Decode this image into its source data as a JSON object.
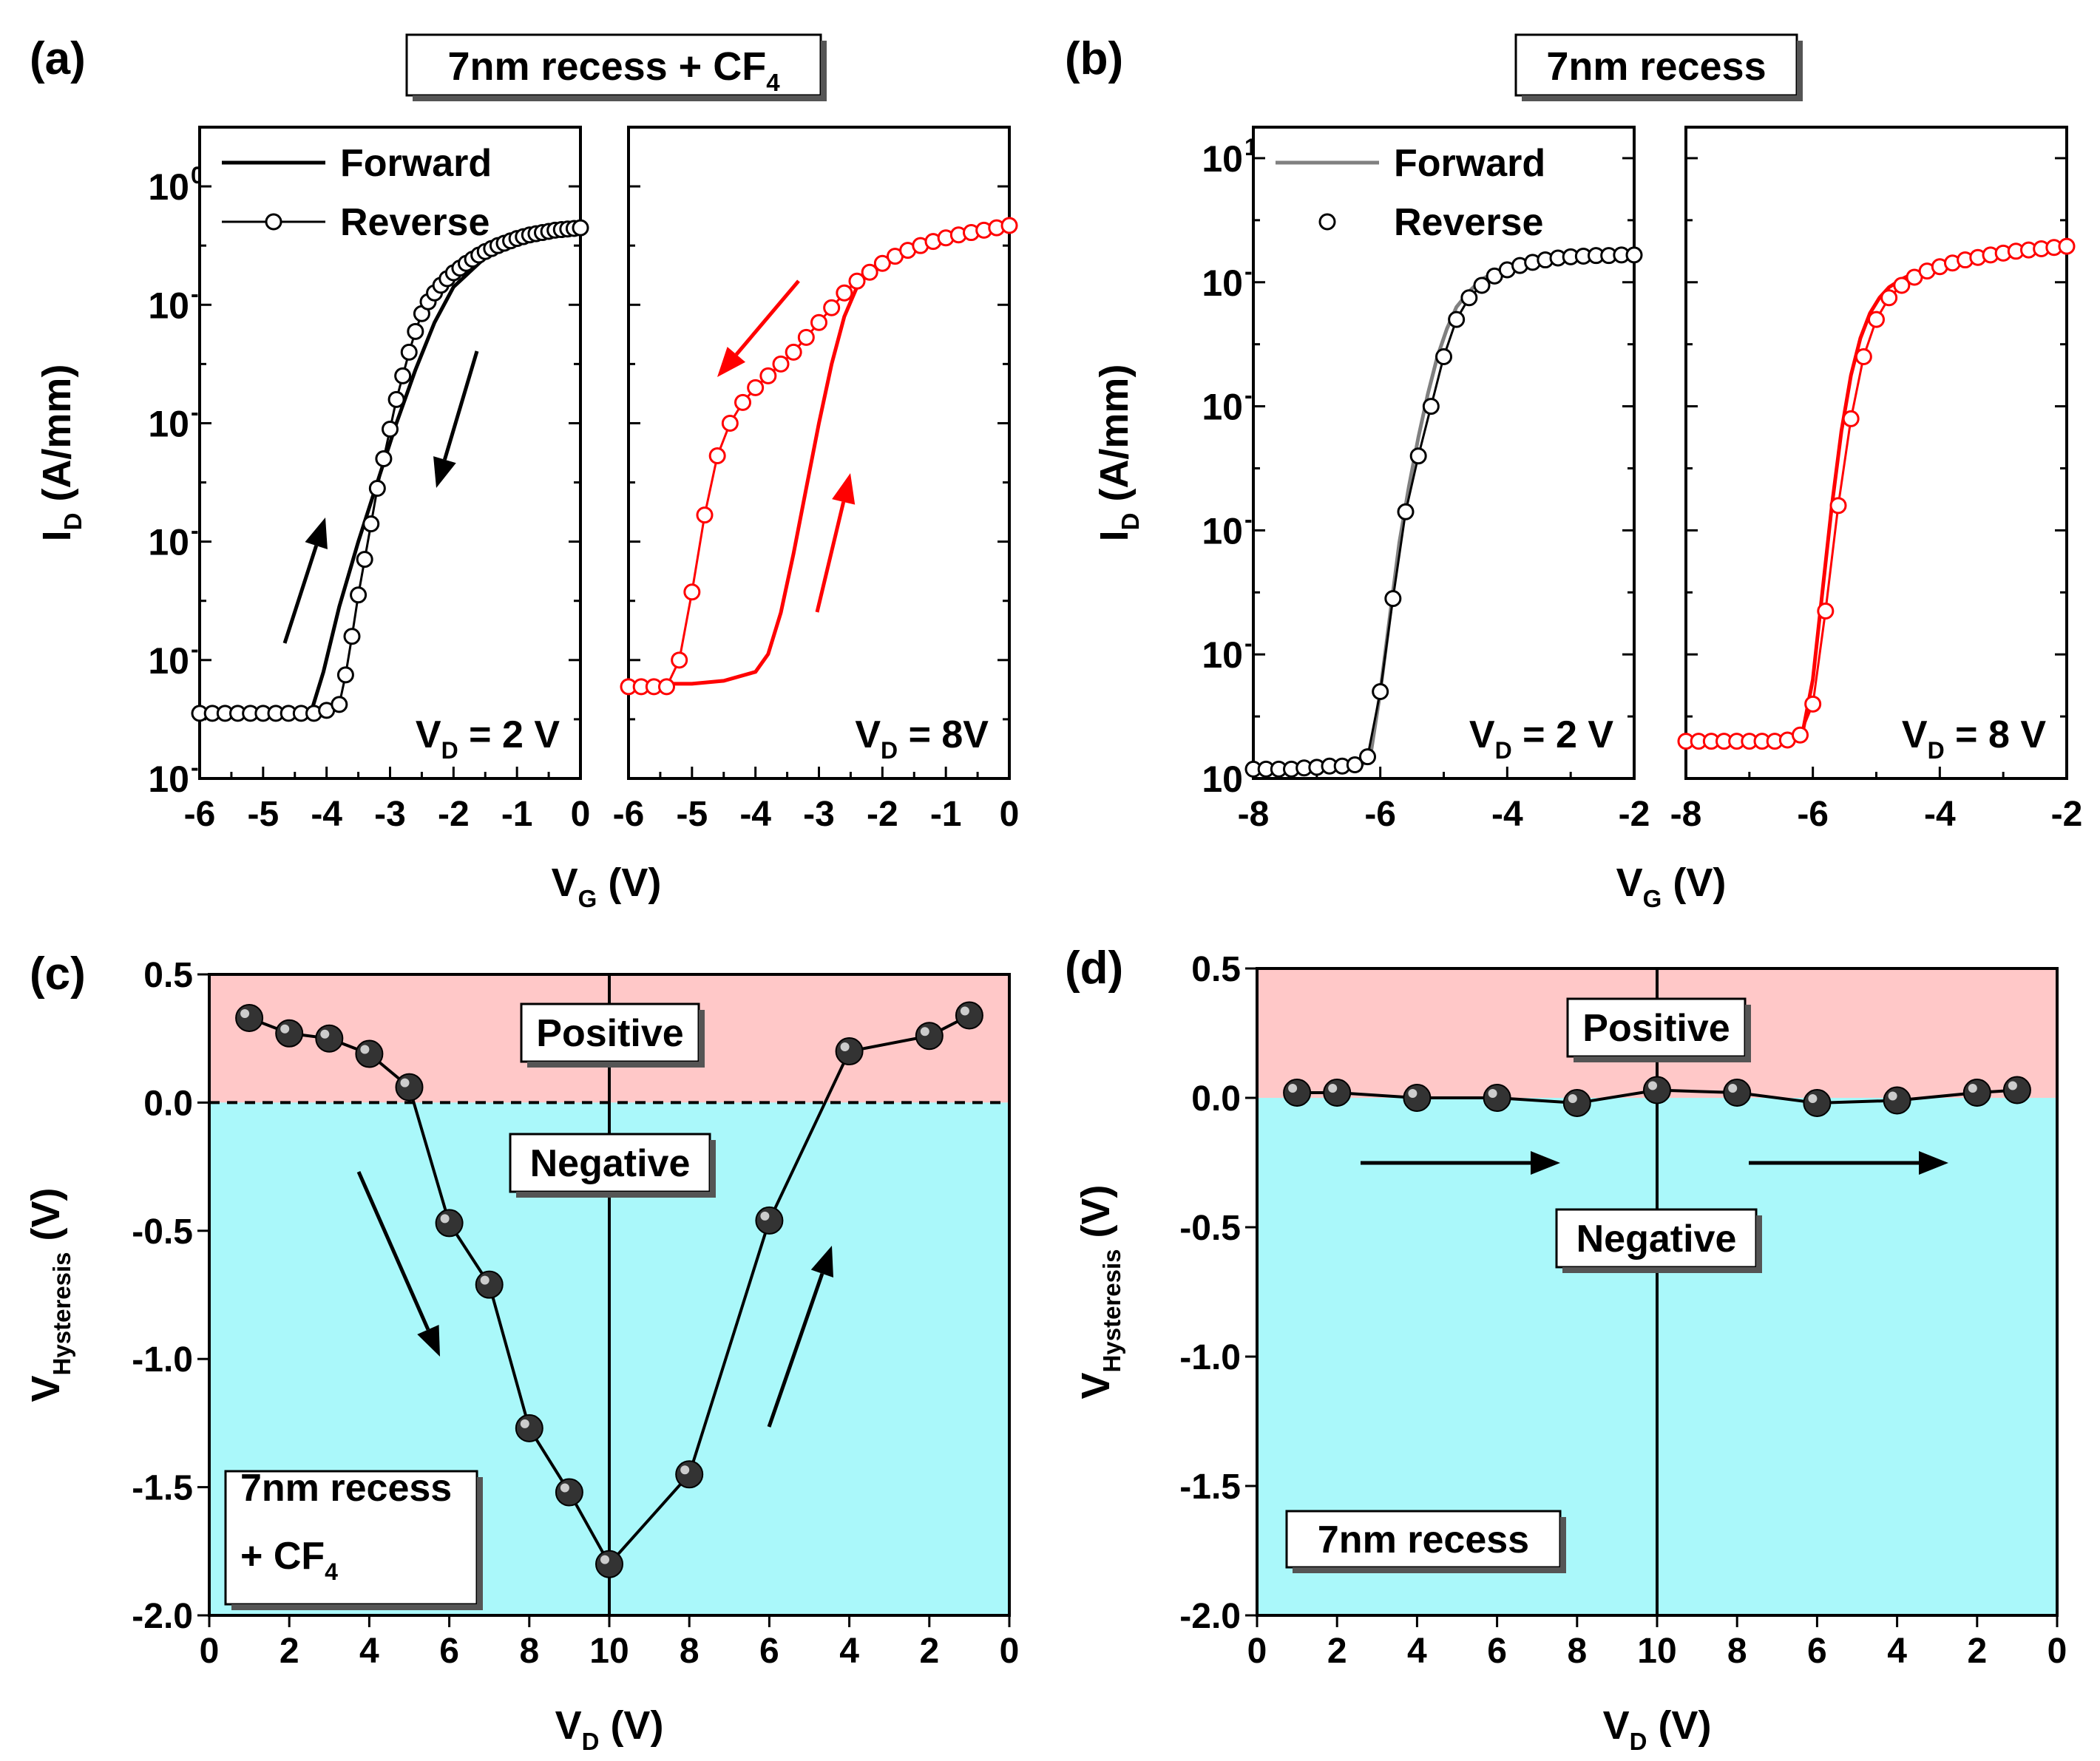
{
  "chart_data": [
    {
      "id": "a",
      "panel_label": "(a)",
      "type": "line",
      "scale": "log",
      "title": "7nm recess + CF",
      "title_sub": "4",
      "xlabel": "V",
      "xlabel_sub": "G",
      "xlabel_unit": " (V)",
      "ylabel": "I",
      "ylabel_sub": "D",
      "ylabel_unit": " (A/mm)",
      "ylim_exp": [
        -10,
        1
      ],
      "ytick_exps": [
        -10,
        -8,
        -6,
        -4,
        -2,
        0
      ],
      "legend": [
        "Forward",
        "Reverse"
      ],
      "subplots": [
        {
          "annotation": "V",
          "annotation_sub": "D",
          "annotation_value": " = 2 V",
          "color": "#000000",
          "xlim": [
            -6,
            0
          ],
          "xticks": [
            "-6",
            "-5",
            "-4",
            "-3",
            "-2",
            "-1",
            "0"
          ],
          "series": [
            {
              "name": "Forward",
              "x": [
                -6,
                -4.5,
                -4.25,
                -4.05,
                -3.8,
                -3.5,
                -3.2,
                -2.9,
                -2.6,
                -2.3,
                -2.0,
                -1.5,
                -1.0,
                -0.5,
                0
              ],
              "log_y": [
                -8.95,
                -8.95,
                -8.9,
                -8.2,
                -7.1,
                -6.0,
                -5.0,
                -4.0,
                -3.1,
                -2.3,
                -1.7,
                -1.2,
                -0.95,
                -0.8,
                -0.7
              ]
            },
            {
              "name": "Reverse",
              "x": [
                -6,
                -5.8,
                -5.6,
                -5.4,
                -5.2,
                -5.0,
                -4.8,
                -4.6,
                -4.4,
                -4.2,
                -4.0,
                -3.8,
                -3.7,
                -3.6,
                -3.5,
                -3.4,
                -3.3,
                -3.2,
                -3.1,
                -3.0,
                -2.9,
                -2.8,
                -2.7,
                -2.6,
                -2.5,
                -2.4,
                -2.3,
                -2.2,
                -2.1,
                -2.0,
                -1.9,
                -1.8,
                -1.7,
                -1.6,
                -1.5,
                -1.4,
                -1.3,
                -1.2,
                -1.1,
                -1.0,
                -0.9,
                -0.8,
                -0.7,
                -0.6,
                -0.5,
                -0.4,
                -0.3,
                -0.2,
                -0.1,
                0
              ],
              "log_y": [
                -8.9,
                -8.9,
                -8.9,
                -8.9,
                -8.9,
                -8.9,
                -8.9,
                -8.9,
                -8.9,
                -8.9,
                -8.85,
                -8.75,
                -8.25,
                -7.6,
                -6.9,
                -6.3,
                -5.7,
                -5.1,
                -4.6,
                -4.1,
                -3.6,
                -3.2,
                -2.8,
                -2.45,
                -2.15,
                -1.95,
                -1.8,
                -1.67,
                -1.56,
                -1.46,
                -1.38,
                -1.3,
                -1.23,
                -1.16,
                -1.1,
                -1.05,
                -1.0,
                -0.96,
                -0.92,
                -0.88,
                -0.85,
                -0.82,
                -0.8,
                -0.78,
                -0.76,
                -0.74,
                -0.73,
                -0.72,
                -0.71,
                -0.7
              ]
            }
          ]
        },
        {
          "annotation": "V",
          "annotation_sub": "D",
          "annotation_value": " = 8V",
          "color": "#ff0000",
          "xlim": [
            -6,
            0
          ],
          "xticks": [
            "-6",
            "-5",
            "-4",
            "-3",
            "-2",
            "-1",
            "0"
          ],
          "series": [
            {
              "name": "Forward",
              "x": [
                -6,
                -5,
                -4.5,
                -4.0,
                -3.8,
                -3.6,
                -3.4,
                -3.2,
                -3.0,
                -2.8,
                -2.6,
                -2.4,
                -2.2,
                -2.0,
                -1.5,
                -1.0,
                -0.5,
                0
              ],
              "log_y": [
                -8.4,
                -8.4,
                -8.35,
                -8.2,
                -7.9,
                -7.2,
                -6.2,
                -5.1,
                -4.0,
                -3.0,
                -2.2,
                -1.7,
                -1.45,
                -1.3,
                -1.05,
                -0.9,
                -0.75,
                -0.65
              ]
            },
            {
              "name": "Reverse",
              "x": [
                -6,
                -5.8,
                -5.6,
                -5.4,
                -5.2,
                -5.0,
                -4.8,
                -4.6,
                -4.4,
                -4.2,
                -4.0,
                -3.8,
                -3.6,
                -3.4,
                -3.2,
                -3.0,
                -2.8,
                -2.6,
                -2.4,
                -2.2,
                -2.0,
                -1.8,
                -1.6,
                -1.4,
                -1.2,
                -1.0,
                -0.8,
                -0.6,
                -0.4,
                -0.2,
                0
              ],
              "log_y": [
                -8.45,
                -8.45,
                -8.45,
                -8.45,
                -8.0,
                -6.85,
                -5.55,
                -4.55,
                -4.0,
                -3.65,
                -3.4,
                -3.2,
                -3.0,
                -2.8,
                -2.55,
                -2.3,
                -2.05,
                -1.8,
                -1.6,
                -1.45,
                -1.3,
                -1.18,
                -1.08,
                -1.0,
                -0.93,
                -0.87,
                -0.82,
                -0.78,
                -0.74,
                -0.7,
                -0.66
              ]
            }
          ]
        }
      ],
      "arrows": [
        "down-left",
        "up",
        "down-left",
        "up"
      ]
    },
    {
      "id": "b",
      "panel_label": "(b)",
      "type": "line",
      "scale": "log",
      "title": "7nm recess",
      "title_sub": "",
      "xlabel": "V",
      "xlabel_sub": "G",
      "xlabel_unit": " (V)",
      "ylabel": "I",
      "ylabel_sub": "D",
      "ylabel_unit": " (A/mm)",
      "ylim_exp": [
        -9,
        1.5
      ],
      "ytick_exps": [
        -9,
        -7,
        -5,
        -3,
        -1,
        1
      ],
      "legend": [
        "Forward",
        "Reverse"
      ],
      "subplots": [
        {
          "annotation": "V",
          "annotation_sub": "D",
          "annotation_value": " = 2 V",
          "color": "#808080",
          "marker_color": "#000000",
          "xlim": [
            -8,
            -2
          ],
          "xticks": [
            "-8",
            "-6",
            "-4",
            "-2"
          ],
          "series": [
            {
              "name": "Forward",
              "x": [
                -8,
                -6.3,
                -6.15,
                -6.0,
                -5.85,
                -5.7,
                -5.55,
                -5.4,
                -5.25,
                -5.1,
                -4.95,
                -4.8,
                -4.6,
                -4.4,
                -4.0,
                -3.5,
                -3.0,
                -2.5,
                -2.0
              ],
              "log_y": [
                -8.85,
                -8.8,
                -8.6,
                -7.6,
                -6.4,
                -5.2,
                -4.3,
                -3.5,
                -2.8,
                -2.2,
                -1.75,
                -1.4,
                -1.15,
                -0.95,
                -0.75,
                -0.65,
                -0.6,
                -0.58,
                -0.57
              ]
            },
            {
              "name": "Reverse",
              "x": [
                -8,
                -7.8,
                -7.6,
                -7.4,
                -7.2,
                -7.0,
                -6.8,
                -6.6,
                -6.4,
                -6.2,
                -6.0,
                -5.8,
                -5.6,
                -5.4,
                -5.2,
                -5.0,
                -4.8,
                -4.6,
                -4.4,
                -4.2,
                -4.0,
                -3.8,
                -3.6,
                -3.4,
                -3.2,
                -3.0,
                -2.8,
                -2.6,
                -2.4,
                -2.2,
                -2.0
              ],
              "log_y": [
                -8.85,
                -8.85,
                -8.85,
                -8.85,
                -8.83,
                -8.82,
                -8.8,
                -8.8,
                -8.78,
                -8.65,
                -7.6,
                -6.1,
                -4.7,
                -3.8,
                -3.0,
                -2.2,
                -1.6,
                -1.25,
                -1.05,
                -0.9,
                -0.8,
                -0.73,
                -0.68,
                -0.64,
                -0.61,
                -0.59,
                -0.58,
                -0.57,
                -0.57,
                -0.56,
                -0.56
              ]
            }
          ]
        },
        {
          "annotation": "V",
          "annotation_sub": "D",
          "annotation_value": " = 8 V",
          "color": "#ff0000",
          "marker_color": "#ff0000",
          "xlim": [
            -8,
            -2
          ],
          "xticks": [
            "-8",
            "-6",
            "-4",
            "-2"
          ],
          "series": [
            {
              "name": "Forward",
              "x": [
                -8,
                -6.3,
                -6.15,
                -6.0,
                -5.85,
                -5.7,
                -5.55,
                -5.4,
                -5.25,
                -5.1,
                -4.95,
                -4.8,
                -4.6,
                -4.4,
                -4.0,
                -3.5,
                -3.0,
                -2.5,
                -2.0
              ],
              "log_y": [
                -8.4,
                -8.35,
                -8.2,
                -7.4,
                -6.0,
                -4.6,
                -3.4,
                -2.5,
                -1.9,
                -1.5,
                -1.25,
                -1.08,
                -0.95,
                -0.85,
                -0.72,
                -0.6,
                -0.52,
                -0.46,
                -0.42
              ]
            },
            {
              "name": "Reverse",
              "x": [
                -8,
                -7.8,
                -7.6,
                -7.4,
                -7.2,
                -7.0,
                -6.8,
                -6.6,
                -6.4,
                -6.2,
                -6.0,
                -5.8,
                -5.6,
                -5.4,
                -5.2,
                -5.0,
                -4.8,
                -4.6,
                -4.4,
                -4.2,
                -4.0,
                -3.8,
                -3.6,
                -3.4,
                -3.2,
                -3.0,
                -2.8,
                -2.6,
                -2.4,
                -2.2,
                -2.0
              ],
              "log_y": [
                -8.4,
                -8.4,
                -8.4,
                -8.4,
                -8.4,
                -8.4,
                -8.4,
                -8.4,
                -8.38,
                -8.3,
                -7.8,
                -6.3,
                -4.6,
                -3.2,
                -2.2,
                -1.6,
                -1.25,
                -1.05,
                -0.92,
                -0.82,
                -0.75,
                -0.69,
                -0.64,
                -0.6,
                -0.56,
                -0.53,
                -0.5,
                -0.48,
                -0.46,
                -0.44,
                -0.42
              ]
            }
          ]
        }
      ]
    },
    {
      "id": "c",
      "panel_label": "(c)",
      "type": "scatter",
      "xlabel": "V",
      "xlabel_sub": "D",
      "xlabel_unit": " (V)",
      "ylabel": "V",
      "ylabel_sub": "Hysteresis",
      "ylabel_unit": " (V)",
      "ylim": [
        -2.0,
        0.5
      ],
      "yticks": [
        "0.5",
        "0.0",
        "-0.5",
        "-1.0",
        "-1.5",
        "-2.0"
      ],
      "xlim": [
        0,
        20
      ],
      "xtick_labels": [
        "0",
        "2",
        "4",
        "6",
        "8",
        "10",
        "8",
        "6",
        "4",
        "2",
        "0"
      ],
      "positive_label": "Positive",
      "negative_label": "Negative",
      "region_colors": {
        "positive": "#ffc8c8",
        "negative": "#aaf8fa"
      },
      "box_label_line1": "7nm recess",
      "box_label_line2": "+ CF",
      "box_label_sub": "4",
      "sweep_VD": [
        1,
        2,
        3,
        4,
        5,
        6,
        7,
        8,
        9,
        10,
        8,
        6,
        4,
        2,
        1
      ],
      "values": [
        0.33,
        0.27,
        0.25,
        0.19,
        0.06,
        -0.47,
        -0.71,
        -1.27,
        -1.52,
        -1.8,
        -1.45,
        -0.46,
        0.2,
        0.26,
        0.34
      ]
    },
    {
      "id": "d",
      "panel_label": "(d)",
      "type": "scatter",
      "xlabel": "V",
      "xlabel_sub": "D",
      "xlabel_unit": " (V)",
      "ylabel": "V",
      "ylabel_sub": "Hysteresis",
      "ylabel_unit": " (V)",
      "ylim": [
        -2.0,
        0.5
      ],
      "yticks": [
        "0.5",
        "0.0",
        "-0.5",
        "-1.0",
        "-1.5",
        "-2.0"
      ],
      "xlim": [
        0,
        20
      ],
      "xtick_labels": [
        "0",
        "2",
        "4",
        "6",
        "8",
        "10",
        "8",
        "6",
        "4",
        "2",
        "0"
      ],
      "positive_label": "Positive",
      "negative_label": "Negative",
      "region_colors": {
        "positive": "#ffc8c8",
        "negative": "#aaf8fa"
      },
      "box_label_line1": "7nm recess",
      "sweep_VD": [
        1,
        2,
        4,
        6,
        8,
        10,
        8,
        6,
        4,
        2,
        1
      ],
      "values": [
        0.02,
        0.02,
        0.0,
        0.0,
        -0.02,
        0.03,
        0.02,
        -0.02,
        -0.01,
        0.02,
        0.03
      ]
    }
  ]
}
